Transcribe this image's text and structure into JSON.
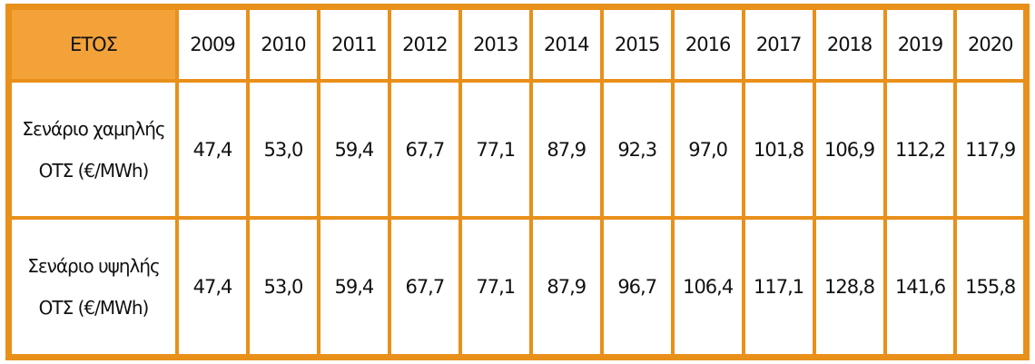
{
  "table": {
    "header": [
      "ΕΤΟΣ",
      "2009",
      "2010",
      "2011",
      "2012",
      "2013",
      "2014",
      "2015",
      "2016",
      "2017",
      "2018",
      "2019",
      "2020"
    ],
    "rows": [
      {
        "label": [
          "Σενάριο χαμηλής",
          "ΟΤΣ (€/MWh)"
        ],
        "cells": [
          "47,4",
          "53,0",
          "59,4",
          "67,7",
          "77,1",
          "87,9",
          "92,3",
          "97,0",
          "101,8",
          "106,9",
          "112,2",
          "117,9"
        ]
      },
      {
        "label": [
          "Σενάριο υψηλής",
          "ΟΤΣ (€/MWh)"
        ],
        "cells": [
          "47,4",
          "53,0",
          "59,4",
          "67,7",
          "77,1",
          "87,9",
          "96,7",
          "106,4",
          "117,1",
          "128,8",
          "141,6",
          "155,8"
        ]
      }
    ]
  }
}
